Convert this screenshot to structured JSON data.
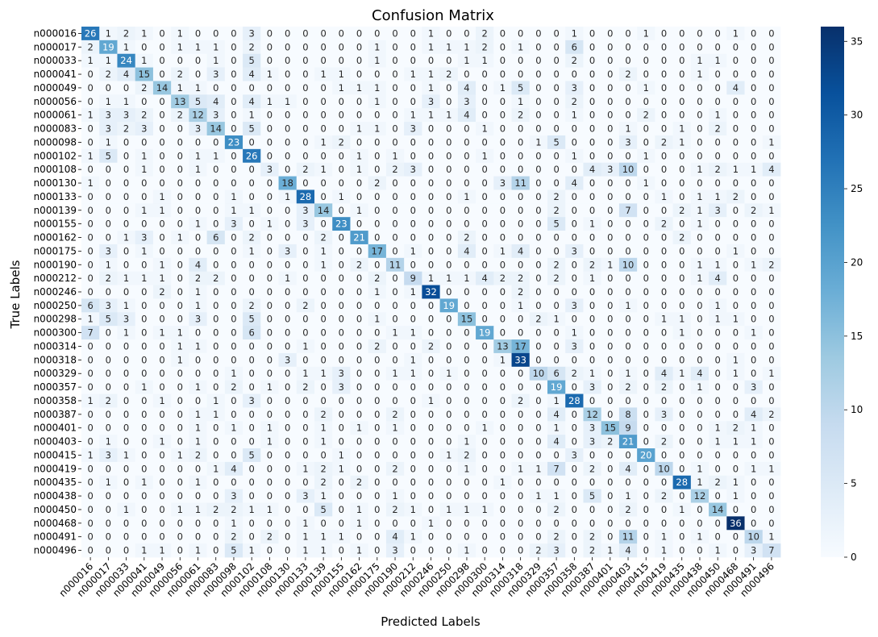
{
  "chart_data": {
    "type": "heatmap",
    "title": "Confusion Matrix",
    "xlabel": "Predicted Labels",
    "ylabel": "True Labels",
    "labels": [
      "n000016",
      "n000017",
      "n000033",
      "n000041",
      "n000049",
      "n000056",
      "n000061",
      "n000083",
      "n000098",
      "n000102",
      "n000108",
      "n000130",
      "n000133",
      "n000139",
      "n000155",
      "n000162",
      "n000175",
      "n000190",
      "n000212",
      "n000246",
      "n000250",
      "n000298",
      "n000300",
      "n000314",
      "n000318",
      "n000329",
      "n000357",
      "n000358",
      "n000387",
      "n000401",
      "n000403",
      "n000415",
      "n000419",
      "n000435",
      "n000438",
      "n000450",
      "n000468",
      "n000491",
      "n000496"
    ],
    "matrix": [
      [
        26,
        1,
        2,
        1,
        0,
        1,
        0,
        0,
        0,
        3,
        0,
        0,
        0,
        0,
        0,
        0,
        0,
        0,
        0,
        1,
        0,
        0,
        2,
        0,
        0,
        0,
        0,
        1,
        0,
        0,
        0,
        1,
        0,
        0,
        0,
        0,
        1,
        0,
        0
      ],
      [
        2,
        19,
        1,
        0,
        0,
        1,
        1,
        1,
        0,
        2,
        0,
        0,
        0,
        0,
        0,
        0,
        1,
        0,
        0,
        1,
        1,
        1,
        2,
        0,
        1,
        0,
        0,
        6,
        0,
        0,
        0,
        0,
        0,
        0,
        0,
        0,
        0,
        0,
        0
      ],
      [
        1,
        1,
        24,
        1,
        0,
        0,
        0,
        1,
        0,
        5,
        0,
        0,
        0,
        0,
        0,
        0,
        1,
        0,
        0,
        0,
        0,
        1,
        1,
        0,
        0,
        0,
        0,
        2,
        0,
        0,
        0,
        0,
        0,
        0,
        1,
        1,
        0,
        0,
        0
      ],
      [
        0,
        2,
        4,
        15,
        0,
        2,
        0,
        3,
        0,
        4,
        1,
        0,
        0,
        1,
        1,
        0,
        0,
        0,
        1,
        1,
        2,
        0,
        0,
        0,
        0,
        0,
        0,
        0,
        0,
        0,
        2,
        0,
        0,
        0,
        1,
        0,
        0,
        0,
        0
      ],
      [
        0,
        0,
        0,
        2,
        14,
        1,
        1,
        0,
        0,
        0,
        0,
        0,
        0,
        0,
        1,
        1,
        1,
        0,
        0,
        1,
        0,
        4,
        0,
        1,
        5,
        0,
        0,
        3,
        0,
        0,
        0,
        1,
        0,
        0,
        0,
        0,
        4,
        0,
        0
      ],
      [
        0,
        1,
        1,
        0,
        0,
        13,
        5,
        4,
        0,
        4,
        1,
        1,
        0,
        0,
        0,
        0,
        1,
        0,
        0,
        3,
        0,
        3,
        0,
        0,
        1,
        0,
        0,
        2,
        0,
        0,
        0,
        0,
        0,
        0,
        0,
        0,
        0,
        0,
        0
      ],
      [
        1,
        3,
        3,
        2,
        0,
        2,
        12,
        3,
        0,
        1,
        0,
        0,
        0,
        0,
        0,
        0,
        0,
        0,
        1,
        1,
        1,
        4,
        0,
        0,
        2,
        0,
        0,
        1,
        0,
        0,
        0,
        2,
        0,
        0,
        0,
        1,
        0,
        0,
        0
      ],
      [
        0,
        3,
        2,
        3,
        0,
        0,
        3,
        14,
        0,
        5,
        0,
        0,
        0,
        0,
        0,
        1,
        1,
        0,
        3,
        0,
        0,
        0,
        1,
        0,
        0,
        0,
        0,
        0,
        0,
        0,
        1,
        0,
        0,
        1,
        0,
        2,
        0,
        0,
        0
      ],
      [
        0,
        1,
        0,
        0,
        0,
        0,
        0,
        0,
        23,
        0,
        0,
        0,
        0,
        1,
        2,
        0,
        0,
        0,
        0,
        0,
        0,
        0,
        0,
        0,
        0,
        1,
        5,
        0,
        0,
        0,
        3,
        0,
        2,
        1,
        0,
        0,
        0,
        0,
        1
      ],
      [
        1,
        5,
        0,
        1,
        0,
        0,
        1,
        1,
        0,
        26,
        0,
        0,
        0,
        0,
        0,
        1,
        0,
        1,
        0,
        0,
        0,
        0,
        1,
        0,
        0,
        0,
        0,
        1,
        0,
        0,
        0,
        1,
        0,
        0,
        0,
        0,
        0,
        0,
        0
      ],
      [
        0,
        0,
        0,
        1,
        0,
        0,
        1,
        0,
        0,
        0,
        3,
        0,
        2,
        1,
        0,
        1,
        0,
        2,
        3,
        0,
        0,
        0,
        0,
        0,
        0,
        0,
        0,
        0,
        4,
        3,
        10,
        0,
        0,
        0,
        1,
        2,
        1,
        1,
        4
      ],
      [
        1,
        0,
        0,
        0,
        0,
        0,
        0,
        0,
        0,
        0,
        0,
        18,
        0,
        0,
        0,
        0,
        2,
        0,
        0,
        0,
        0,
        0,
        0,
        3,
        11,
        0,
        0,
        4,
        0,
        0,
        0,
        1,
        0,
        0,
        0,
        0,
        0,
        0,
        0
      ],
      [
        0,
        0,
        0,
        0,
        1,
        0,
        0,
        0,
        1,
        0,
        0,
        1,
        28,
        0,
        1,
        0,
        0,
        0,
        0,
        0,
        0,
        1,
        0,
        0,
        0,
        0,
        2,
        0,
        0,
        0,
        0,
        0,
        1,
        0,
        1,
        1,
        2,
        0,
        0
      ],
      [
        0,
        0,
        0,
        1,
        1,
        0,
        0,
        0,
        1,
        1,
        0,
        0,
        3,
        14,
        0,
        1,
        0,
        0,
        0,
        0,
        0,
        0,
        0,
        0,
        0,
        0,
        2,
        0,
        0,
        0,
        7,
        0,
        0,
        2,
        1,
        3,
        0,
        2,
        1
      ],
      [
        0,
        0,
        0,
        0,
        0,
        0,
        1,
        0,
        3,
        0,
        1,
        0,
        3,
        0,
        23,
        0,
        0,
        0,
        0,
        0,
        0,
        0,
        0,
        0,
        0,
        0,
        5,
        0,
        1,
        0,
        0,
        0,
        2,
        0,
        1,
        0,
        0,
        0,
        0
      ],
      [
        0,
        0,
        1,
        3,
        0,
        1,
        0,
        6,
        0,
        2,
        0,
        0,
        0,
        2,
        0,
        21,
        0,
        0,
        0,
        0,
        0,
        2,
        0,
        0,
        0,
        0,
        0,
        0,
        0,
        0,
        0,
        0,
        0,
        2,
        0,
        0,
        0,
        0,
        0
      ],
      [
        0,
        3,
        0,
        1,
        0,
        0,
        0,
        0,
        0,
        1,
        0,
        3,
        0,
        1,
        0,
        0,
        17,
        0,
        1,
        0,
        0,
        4,
        0,
        1,
        4,
        0,
        0,
        3,
        0,
        0,
        0,
        0,
        0,
        0,
        0,
        0,
        1,
        0,
        0
      ],
      [
        0,
        1,
        0,
        0,
        1,
        0,
        4,
        0,
        0,
        0,
        0,
        0,
        0,
        1,
        0,
        2,
        0,
        11,
        0,
        0,
        0,
        0,
        0,
        0,
        0,
        0,
        2,
        0,
        2,
        1,
        10,
        0,
        0,
        0,
        1,
        1,
        0,
        1,
        2
      ],
      [
        0,
        2,
        1,
        1,
        1,
        0,
        2,
        2,
        0,
        0,
        0,
        1,
        0,
        0,
        0,
        0,
        2,
        0,
        9,
        1,
        1,
        1,
        4,
        2,
        2,
        0,
        2,
        0,
        1,
        0,
        0,
        0,
        0,
        0,
        1,
        4,
        0,
        0,
        0
      ],
      [
        0,
        0,
        0,
        0,
        2,
        0,
        1,
        0,
        0,
        0,
        0,
        0,
        0,
        0,
        0,
        0,
        1,
        0,
        1,
        32,
        0,
        0,
        0,
        0,
        2,
        0,
        0,
        0,
        0,
        0,
        0,
        0,
        0,
        0,
        0,
        0,
        0,
        0,
        0
      ],
      [
        6,
        3,
        1,
        0,
        0,
        0,
        1,
        0,
        0,
        2,
        0,
        0,
        2,
        0,
        0,
        0,
        0,
        0,
        0,
        0,
        19,
        0,
        0,
        0,
        1,
        0,
        0,
        3,
        0,
        0,
        1,
        0,
        0,
        0,
        0,
        1,
        0,
        0,
        0
      ],
      [
        1,
        5,
        3,
        0,
        0,
        0,
        3,
        0,
        0,
        5,
        0,
        0,
        0,
        0,
        0,
        0,
        1,
        0,
        0,
        0,
        0,
        15,
        0,
        0,
        0,
        2,
        1,
        0,
        0,
        0,
        0,
        0,
        1,
        1,
        0,
        1,
        1,
        0,
        0
      ],
      [
        7,
        0,
        1,
        0,
        1,
        1,
        0,
        0,
        0,
        6,
        0,
        0,
        0,
        0,
        0,
        0,
        0,
        1,
        1,
        0,
        0,
        0,
        19,
        0,
        0,
        0,
        0,
        1,
        0,
        0,
        0,
        0,
        0,
        1,
        0,
        0,
        0,
        1,
        0
      ],
      [
        0,
        0,
        0,
        0,
        0,
        1,
        1,
        0,
        0,
        0,
        0,
        0,
        1,
        0,
        0,
        0,
        2,
        0,
        0,
        2,
        0,
        0,
        0,
        13,
        17,
        0,
        0,
        3,
        0,
        0,
        0,
        0,
        0,
        0,
        0,
        0,
        0,
        0,
        0
      ],
      [
        0,
        0,
        0,
        0,
        0,
        1,
        0,
        0,
        0,
        0,
        0,
        3,
        0,
        0,
        0,
        0,
        0,
        0,
        1,
        0,
        0,
        0,
        0,
        1,
        33,
        0,
        0,
        0,
        0,
        0,
        0,
        0,
        0,
        0,
        0,
        0,
        1,
        0,
        0
      ],
      [
        0,
        0,
        0,
        0,
        0,
        0,
        0,
        0,
        1,
        0,
        0,
        0,
        1,
        1,
        3,
        0,
        0,
        1,
        1,
        0,
        1,
        0,
        0,
        0,
        0,
        10,
        6,
        2,
        1,
        0,
        1,
        0,
        4,
        1,
        4,
        0,
        1,
        0,
        1
      ],
      [
        0,
        0,
        0,
        1,
        0,
        0,
        1,
        0,
        2,
        0,
        1,
        0,
        2,
        0,
        3,
        0,
        0,
        0,
        0,
        0,
        0,
        0,
        0,
        0,
        0,
        0,
        19,
        0,
        3,
        0,
        2,
        0,
        2,
        0,
        1,
        0,
        0,
        3,
        0
      ],
      [
        1,
        2,
        0,
        0,
        1,
        0,
        0,
        1,
        0,
        3,
        0,
        0,
        0,
        0,
        0,
        0,
        0,
        0,
        0,
        1,
        0,
        0,
        0,
        0,
        2,
        0,
        1,
        28,
        0,
        0,
        0,
        0,
        0,
        0,
        0,
        0,
        0,
        0,
        0
      ],
      [
        0,
        0,
        0,
        0,
        0,
        0,
        1,
        1,
        0,
        0,
        0,
        0,
        0,
        2,
        0,
        0,
        0,
        2,
        0,
        0,
        0,
        0,
        0,
        0,
        0,
        0,
        4,
        0,
        12,
        0,
        8,
        0,
        3,
        0,
        0,
        0,
        0,
        4,
        2
      ],
      [
        0,
        0,
        0,
        0,
        0,
        0,
        1,
        0,
        1,
        0,
        1,
        0,
        0,
        1,
        0,
        1,
        0,
        1,
        0,
        0,
        0,
        0,
        1,
        0,
        0,
        0,
        1,
        0,
        3,
        15,
        9,
        0,
        0,
        0,
        0,
        1,
        2,
        1,
        0
      ],
      [
        0,
        1,
        0,
        0,
        1,
        0,
        1,
        0,
        0,
        0,
        1,
        0,
        0,
        1,
        0,
        0,
        0,
        0,
        0,
        0,
        0,
        1,
        0,
        0,
        0,
        0,
        4,
        0,
        3,
        2,
        21,
        0,
        2,
        0,
        0,
        1,
        1,
        1,
        0
      ],
      [
        1,
        3,
        1,
        0,
        0,
        1,
        2,
        0,
        0,
        5,
        0,
        0,
        0,
        0,
        1,
        0,
        0,
        0,
        0,
        0,
        1,
        2,
        0,
        0,
        0,
        0,
        0,
        3,
        0,
        0,
        0,
        20,
        0,
        0,
        0,
        0,
        0,
        0,
        0
      ],
      [
        0,
        0,
        0,
        0,
        0,
        0,
        0,
        1,
        4,
        0,
        0,
        0,
        1,
        2,
        1,
        0,
        0,
        2,
        0,
        0,
        0,
        1,
        0,
        0,
        1,
        1,
        7,
        0,
        2,
        0,
        4,
        0,
        10,
        0,
        1,
        0,
        0,
        1,
        1
      ],
      [
        0,
        1,
        0,
        1,
        0,
        0,
        1,
        0,
        0,
        0,
        0,
        0,
        0,
        2,
        0,
        2,
        0,
        0,
        0,
        0,
        0,
        0,
        0,
        1,
        0,
        0,
        0,
        0,
        0,
        0,
        0,
        0,
        0,
        28,
        1,
        2,
        1,
        0,
        0
      ],
      [
        0,
        0,
        0,
        0,
        0,
        0,
        0,
        0,
        3,
        0,
        0,
        0,
        3,
        1,
        0,
        0,
        0,
        1,
        0,
        0,
        0,
        0,
        0,
        0,
        0,
        1,
        1,
        0,
        5,
        0,
        1,
        0,
        2,
        0,
        12,
        0,
        1,
        0,
        0
      ],
      [
        0,
        0,
        1,
        0,
        0,
        1,
        1,
        2,
        2,
        1,
        1,
        0,
        0,
        5,
        0,
        1,
        0,
        2,
        1,
        0,
        1,
        1,
        1,
        0,
        0,
        0,
        2,
        0,
        0,
        0,
        2,
        0,
        0,
        1,
        0,
        14,
        0,
        0,
        0
      ],
      [
        0,
        0,
        0,
        0,
        0,
        0,
        0,
        0,
        1,
        0,
        0,
        0,
        1,
        0,
        0,
        1,
        0,
        0,
        0,
        1,
        0,
        0,
        0,
        0,
        0,
        0,
        0,
        0,
        0,
        0,
        0,
        0,
        0,
        0,
        0,
        0,
        36,
        0,
        0
      ],
      [
        0,
        0,
        0,
        0,
        0,
        0,
        0,
        0,
        2,
        0,
        2,
        0,
        1,
        1,
        1,
        0,
        0,
        4,
        1,
        0,
        0,
        0,
        0,
        0,
        0,
        0,
        2,
        0,
        2,
        0,
        11,
        0,
        1,
        0,
        1,
        0,
        0,
        10,
        1
      ],
      [
        0,
        0,
        0,
        1,
        1,
        0,
        1,
        0,
        5,
        1,
        0,
        0,
        1,
        1,
        0,
        1,
        0,
        3,
        0,
        0,
        0,
        1,
        0,
        0,
        0,
        2,
        3,
        0,
        2,
        1,
        4,
        0,
        1,
        0,
        0,
        1,
        0,
        3,
        7
      ]
    ],
    "colorbar": {
      "min": 0,
      "max": 36,
      "ticks": [
        0,
        5,
        10,
        15,
        20,
        25,
        30,
        35
      ]
    },
    "colormap": [
      "#f7fbff",
      "#deebf7",
      "#c6dbef",
      "#9ecae1",
      "#6baed6",
      "#4292c6",
      "#2171b5",
      "#08519c",
      "#08306b"
    ],
    "grid": false,
    "legend": "colorbar-right"
  }
}
